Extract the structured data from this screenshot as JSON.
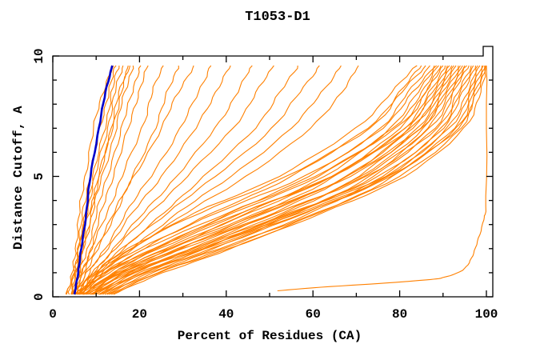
{
  "title": "T1053-D1",
  "colors": {
    "background": "#ffffff",
    "axis": "#000000",
    "model_curve": "#ff8000",
    "reference_curve": "#0000cc"
  },
  "chart_data": {
    "type": "line",
    "title": "T1053-D1",
    "xlabel": "Percent of Residues (CA)",
    "ylabel": "Distance Cutoff, A",
    "xlim": [
      0,
      100
    ],
    "ylim": [
      0,
      10
    ],
    "x_major_ticks": [
      0,
      20,
      40,
      60,
      80,
      100
    ],
    "x_minor_step": 10,
    "y_major_ticks": [
      0,
      5,
      10
    ],
    "y_minor_step": 1,
    "grid": false,
    "legend": "none",
    "curve_color": "#ff8000",
    "reference_color": "#0000cc",
    "cutoffs": [
      0.1,
      1,
      2,
      3.5,
      5,
      7,
      8.5,
      9.6
    ],
    "reference_series": {
      "percents": [
        5.0,
        5.8,
        6.6,
        7.7,
        8.7,
        10.6,
        12.2,
        13.7
      ]
    },
    "outlier_series": {
      "points_percent_cutoff": [
        [
          51.8,
          0.25
        ],
        [
          62,
          0.4
        ],
        [
          75,
          0.55
        ],
        [
          86,
          0.7
        ],
        [
          90,
          0.8
        ],
        [
          94.5,
          1.1
        ],
        [
          96.5,
          1.6
        ],
        [
          98,
          2.3
        ],
        [
          99.3,
          3.2
        ],
        [
          100,
          4.2
        ],
        [
          100,
          9.6
        ]
      ]
    },
    "model_series": [
      [
        3.0,
        4.6,
        5.2,
        6.2,
        7.4,
        9.5,
        11.5,
        14.0
      ],
      [
        4.2,
        5.0,
        5.8,
        7.0,
        8.5,
        11.0,
        12.8,
        14.6
      ],
      [
        4.5,
        5.3,
        6.3,
        7.6,
        9.3,
        12.0,
        13.6,
        15.3
      ],
      [
        3.8,
        4.8,
        6.0,
        7.8,
        9.8,
        12.6,
        14.4,
        16.2
      ],
      [
        5.0,
        6.0,
        7.2,
        8.8,
        10.6,
        13.4,
        15.4,
        17.4
      ],
      [
        4.3,
        5.5,
        7.0,
        9.2,
        11.4,
        14.6,
        16.6,
        18.5
      ],
      [
        4.8,
        6.2,
        8.0,
        10.2,
        12.5,
        16.0,
        18.2,
        20.3
      ],
      [
        5.2,
        6.8,
        8.8,
        11.2,
        13.8,
        17.5,
        19.8,
        22.0
      ],
      [
        3.2,
        5.1,
        6.6,
        8.4,
        10.8,
        13.8,
        15.8,
        17.8
      ],
      [
        4.5,
        6.5,
        9.0,
        12.5,
        16.0,
        20.5,
        23.0,
        25.5
      ],
      [
        5.5,
        7.5,
        10.5,
        14.5,
        18.5,
        23.5,
        26.5,
        29.0
      ],
      [
        4.8,
        7.0,
        10.0,
        14.0,
        18.8,
        25.0,
        29.0,
        32.5
      ],
      [
        6.0,
        8.5,
        12.0,
        17.0,
        22.5,
        29.5,
        33.5,
        36.5
      ],
      [
        5.2,
        8.0,
        12.5,
        18.5,
        25.0,
        33.0,
        37.5,
        41.0
      ],
      [
        6.5,
        9.5,
        14.0,
        21.0,
        28.5,
        37.5,
        42.5,
        46.0
      ],
      [
        5.8,
        9.0,
        14.5,
        22.5,
        31.0,
        41.5,
        47.0,
        51.0
      ],
      [
        7.0,
        10.5,
        16.5,
        25.5,
        35.0,
        46.5,
        52.5,
        56.5
      ],
      [
        6.2,
        10.0,
        16.0,
        26.5,
        37.5,
        50.5,
        57.0,
        61.5
      ],
      [
        7.5,
        11.5,
        18.0,
        29.0,
        41.0,
        55.0,
        62.0,
        66.5
      ],
      [
        6.8,
        11.0,
        18.5,
        31.0,
        44.5,
        59.5,
        66.5,
        70.5
      ],
      [
        5.0,
        10.0,
        18.0,
        33.0,
        52.0,
        70.0,
        78.0,
        84.0
      ],
      [
        6.5,
        12.0,
        21.0,
        37.0,
        55.0,
        72.5,
        80.0,
        85.0
      ],
      [
        4.5,
        9.5,
        17.5,
        34.0,
        54.0,
        73.0,
        80.5,
        86.0
      ],
      [
        7.5,
        14.0,
        24.0,
        41.0,
        59.0,
        75.5,
        82.0,
        87.0
      ],
      [
        5.5,
        11.0,
        20.0,
        38.0,
        58.0,
        76.0,
        83.0,
        88.0
      ],
      [
        8.0,
        15.5,
        27.0,
        45.0,
        62.5,
        78.0,
        84.0,
        88.5
      ],
      [
        6.0,
        12.5,
        23.0,
        42.0,
        61.0,
        78.5,
        85.0,
        89.0
      ],
      [
        9.0,
        17.0,
        29.5,
        48.0,
        65.0,
        80.0,
        86.0,
        89.5
      ],
      [
        5.2,
        11.5,
        21.5,
        40.5,
        60.5,
        79.0,
        86.0,
        90.0
      ],
      [
        7.0,
        14.5,
        26.0,
        45.5,
        64.5,
        81.0,
        87.0,
        90.5
      ],
      [
        10.0,
        19.0,
        32.0,
        51.0,
        68.0,
        82.0,
        87.5,
        91.0
      ],
      [
        6.2,
        13.0,
        24.5,
        44.0,
        64.0,
        81.5,
        88.0,
        91.5
      ],
      [
        8.5,
        16.5,
        29.0,
        49.5,
        67.5,
        83.0,
        88.5,
        92.0
      ],
      [
        5.8,
        12.0,
        23.5,
        43.5,
        64.5,
        82.5,
        89.0,
        92.5
      ],
      [
        11.0,
        21.0,
        35.0,
        54.0,
        70.5,
        84.0,
        89.5,
        93.0
      ],
      [
        7.2,
        15.0,
        27.5,
        48.5,
        68.0,
        84.5,
        90.0,
        93.5
      ],
      [
        9.5,
        18.5,
        32.5,
        53.0,
        71.0,
        85.5,
        90.5,
        94.0
      ],
      [
        6.8,
        14.0,
        26.5,
        47.5,
        68.5,
        85.0,
        91.0,
        94.5
      ],
      [
        12.0,
        22.5,
        37.0,
        56.5,
        73.0,
        86.5,
        91.5,
        95.0
      ],
      [
        8.2,
        16.0,
        30.0,
        52.0,
        71.5,
        87.0,
        92.0,
        95.5
      ],
      [
        10.5,
        20.0,
        34.5,
        56.0,
        74.0,
        88.0,
        92.5,
        96.0
      ],
      [
        7.8,
        15.5,
        29.0,
        51.5,
        72.5,
        88.5,
        93.5,
        96.5
      ],
      [
        13.0,
        24.0,
        39.5,
        59.5,
        76.0,
        89.5,
        94.0,
        97.0
      ],
      [
        9.8,
        18.0,
        33.0,
        55.5,
        75.0,
        90.0,
        94.5,
        97.5
      ],
      [
        11.5,
        21.5,
        36.5,
        58.5,
        77.0,
        91.0,
        95.5,
        98.0
      ],
      [
        8.8,
        17.5,
        32.0,
        55.0,
        76.5,
        91.5,
        96.0,
        98.5
      ],
      [
        14.0,
        25.5,
        41.0,
        61.5,
        78.5,
        92.5,
        96.5,
        99.0
      ],
      [
        10.8,
        20.5,
        35.5,
        58.0,
        78.0,
        93.0,
        97.0,
        99.3
      ],
      [
        12.5,
        23.0,
        38.5,
        61.0,
        80.0,
        94.0,
        97.5,
        99.6
      ],
      [
        9.2,
        18.5,
        34.0,
        57.0,
        77.5,
        93.5,
        97.8,
        99.8
      ],
      [
        13.5,
        24.5,
        40.5,
        62.5,
        81.0,
        95.0,
        98.5,
        100.0
      ]
    ]
  }
}
